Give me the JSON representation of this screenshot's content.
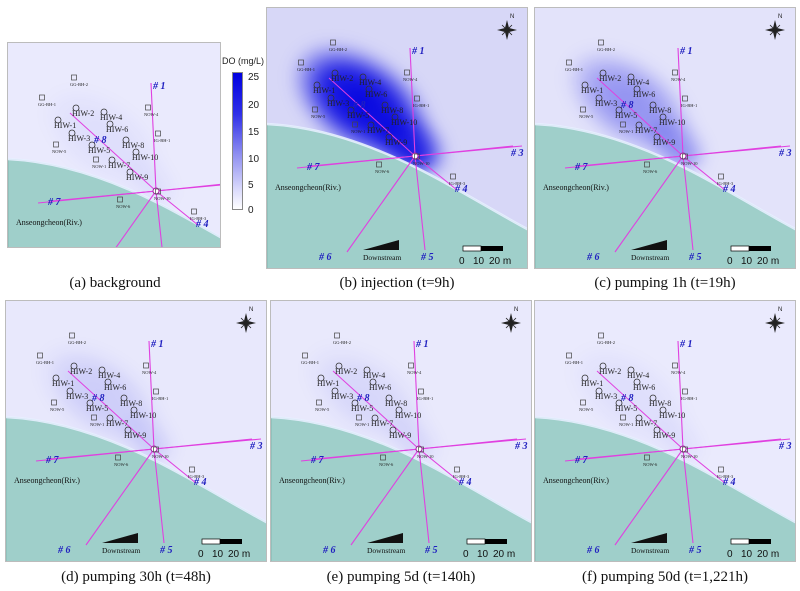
{
  "colorbar": {
    "title": "DO (mg/L)",
    "ticks": [
      "25",
      "20",
      "15",
      "10",
      "5",
      "0"
    ],
    "color_max": "#0000e0",
    "color_min": "#ffffff"
  },
  "map_labels": {
    "river": "Anseongcheon(Riv.)",
    "downstream": "Downstream",
    "scale": [
      "0",
      "10",
      "20 m"
    ],
    "lines": [
      "# 1",
      "# 3",
      "# 4",
      "# 5",
      "# 6",
      "# 7",
      "# 8"
    ],
    "wells": [
      "GG-BH-1",
      "GG-BH-2",
      "HIW-1",
      "HIW-2",
      "HIW-3",
      "HIW-4",
      "HIW-5",
      "HIW-6",
      "HIW-7",
      "HIW-8",
      "HIW-9",
      "HIW-10",
      "NOW-1",
      "NOW-4",
      "NOW-5",
      "NOW-6",
      "NOW-10",
      "IG-BH-1",
      "IG-BH-3"
    ]
  },
  "chart_data": {
    "type": "heatmap",
    "variable": "DO (mg/L)",
    "colorbar_range": [
      0,
      25
    ],
    "panels": [
      {
        "id": "a",
        "caption": "(a) background",
        "plume_level": 0.05
      },
      {
        "id": "b",
        "caption": "(b) injection (t=9h)",
        "plume_level": 1.0
      },
      {
        "id": "c",
        "caption": "(c) pumping 1h (t=19h)",
        "plume_level": 0.35
      },
      {
        "id": "d",
        "caption": "(d) pumping 30h (t=48h)",
        "plume_level": 0.12
      },
      {
        "id": "e",
        "caption": "(e) pumping 5d (t=140h)",
        "plume_level": 0.08
      },
      {
        "id": "f",
        "caption": "(f) pumping 50d (t=1,221h)",
        "plume_level": 0.05
      }
    ]
  }
}
